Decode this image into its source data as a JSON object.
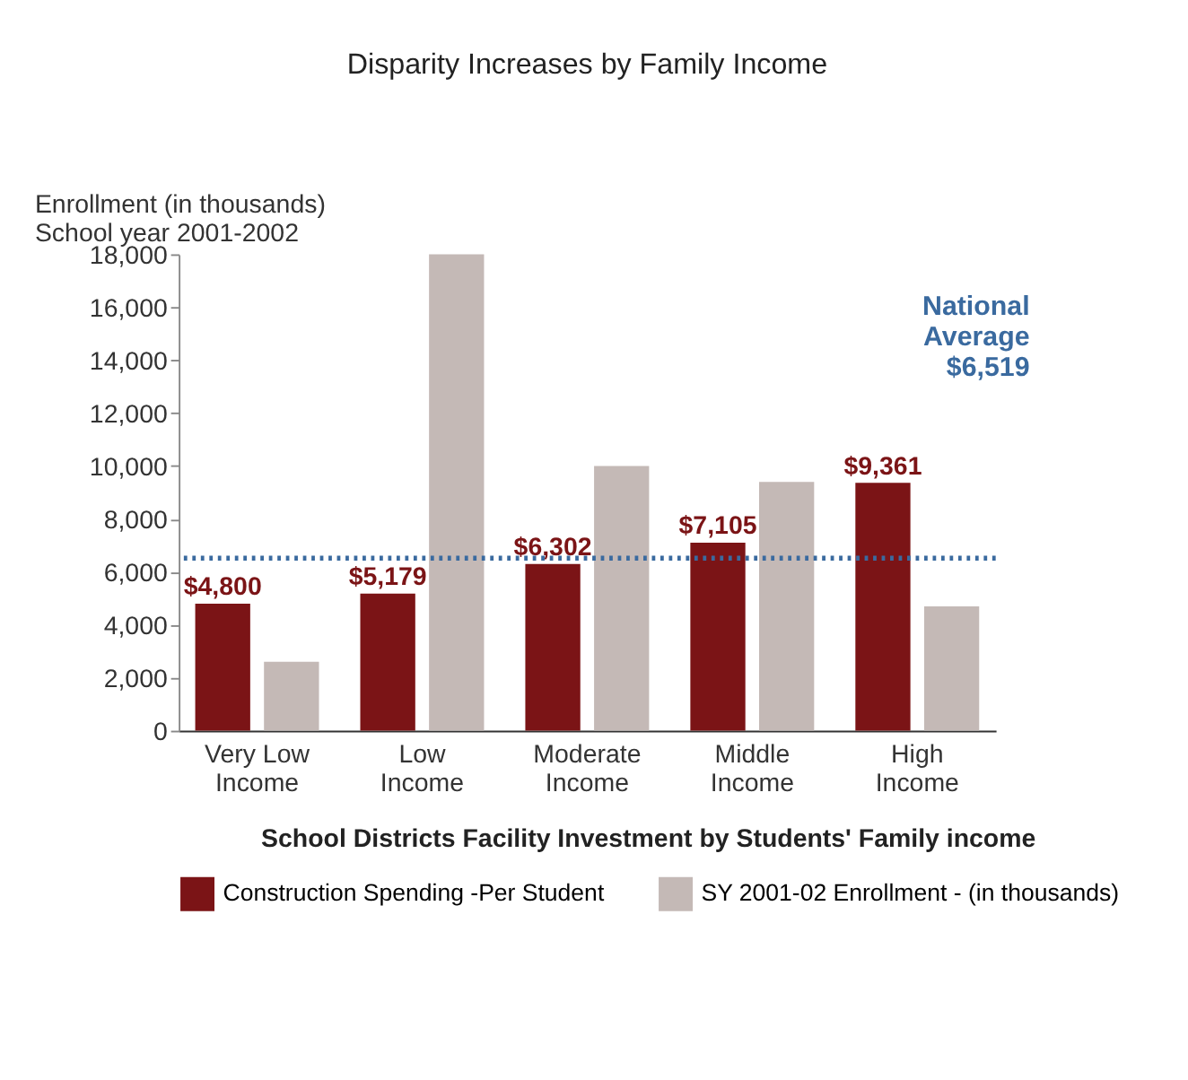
{
  "chart_data": {
    "type": "bar",
    "title": "Disparity Increases by Family Income",
    "ylabel": [
      "Enrollment (in thousands)",
      "School year 2001-2002"
    ],
    "legend_title": "School Districts Facility Investment by Students' Family income",
    "categories": [
      "Very Low Income",
      "Low Income",
      "Moderate Income",
      "Middle Income",
      "High Income"
    ],
    "series": [
      {
        "name": "Construction Spending -Per Student",
        "color": "#7b1416",
        "values": [
          4800,
          5179,
          6302,
          7105,
          9361
        ],
        "value_labels": [
          "$4,800",
          "$5,179",
          "$6,302",
          "$7,105",
          "$9,361"
        ]
      },
      {
        "name": "SY 2001-02 Enrollment - (in thousands)",
        "color": "#c4b9b6",
        "values": [
          2600,
          18000,
          10000,
          9400,
          4700
        ]
      }
    ],
    "ylim": [
      0,
      18000
    ],
    "yticks": [
      0,
      {
        "value": 2000,
        "label": "2,000"
      },
      {
        "value": 4000,
        "label": "4,000"
      },
      {
        "value": 6000,
        "label": "6,000"
      },
      {
        "value": 8000,
        "label": "8,000"
      },
      {
        "value": 10000,
        "label": "10,000"
      },
      {
        "value": 12000,
        "label": "12,000"
      },
      {
        "value": 14000,
        "label": "14,000"
      },
      {
        "value": 16000,
        "label": "16,000"
      },
      {
        "value": 18000,
        "label": "18,000"
      }
    ],
    "ref_lines": [
      {
        "axis": "y",
        "value": 6519,
        "label": "National Average $6,519",
        "color": "#3a6a9f",
        "line_style": "dotted"
      }
    ],
    "grid": false,
    "legend": "bottom"
  }
}
